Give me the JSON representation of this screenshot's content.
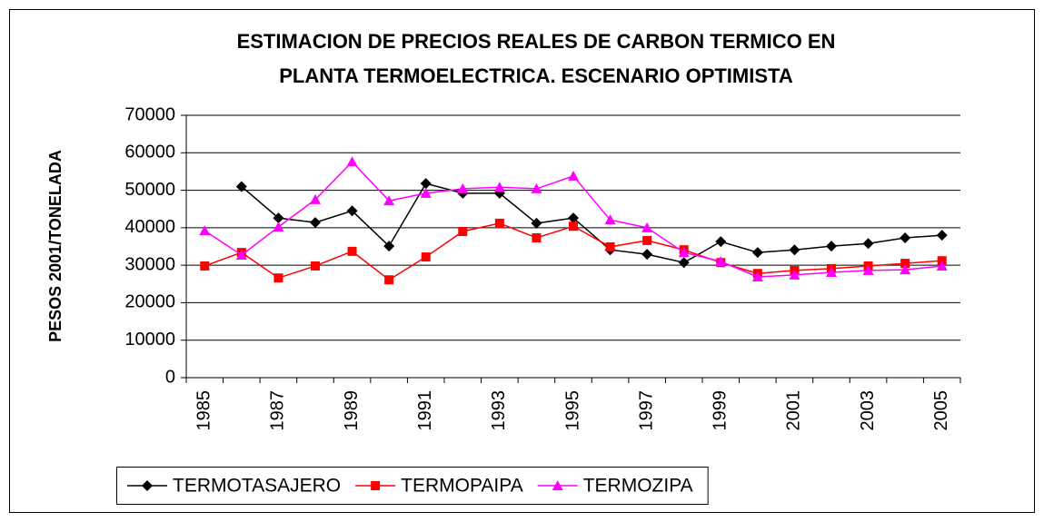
{
  "chart_data": {
    "type": "line",
    "title": "ESTIMACION DE PRECIOS REALES DE CARBON TERMICO EN",
    "subtitle": "PLANTA TERMOELECTRICA. ESCENARIO OPTIMISTA",
    "y_label": "PESOS 2001/TONELADA",
    "categories": [
      "1985",
      null,
      "1987",
      null,
      "1989",
      null,
      "1991",
      null,
      "1993",
      null,
      "1995",
      null,
      "1997",
      null,
      "1999",
      null,
      "2001",
      null,
      "2003",
      null,
      "2005"
    ],
    "series": [
      {
        "name": "TERMOTASAJERO",
        "color": "#000000",
        "marker": "diamond",
        "values": [
          null,
          51000,
          42600,
          41400,
          44500,
          35100,
          51800,
          49200,
          49200,
          41200,
          42600,
          34100,
          32900,
          30700,
          36300,
          33400,
          34100,
          35100,
          35800,
          37300,
          38000
        ]
      },
      {
        "name": "TERMOPAIPA",
        "color": "#ff0000",
        "marker": "square",
        "values": [
          29800,
          33400,
          26600,
          29800,
          33700,
          26100,
          32200,
          39000,
          41200,
          37300,
          40400,
          34900,
          36600,
          34100,
          30700,
          27800,
          28600,
          29100,
          29800,
          30500,
          31200
        ]
      },
      {
        "name": "TERMOZIPA",
        "color": "#ff00ff",
        "marker": "triangle",
        "values": [
          39200,
          32700,
          40200,
          47500,
          57600,
          47200,
          49200,
          50400,
          50800,
          50400,
          53800,
          42100,
          40000,
          33400,
          31000,
          26900,
          27400,
          28100,
          28600,
          28800,
          29800
        ]
      }
    ],
    "ylim": [
      0,
      70000
    ],
    "yticks": [
      0,
      10000,
      20000,
      30000,
      40000,
      50000,
      60000,
      70000
    ],
    "grid": true,
    "legend": "bottom"
  }
}
